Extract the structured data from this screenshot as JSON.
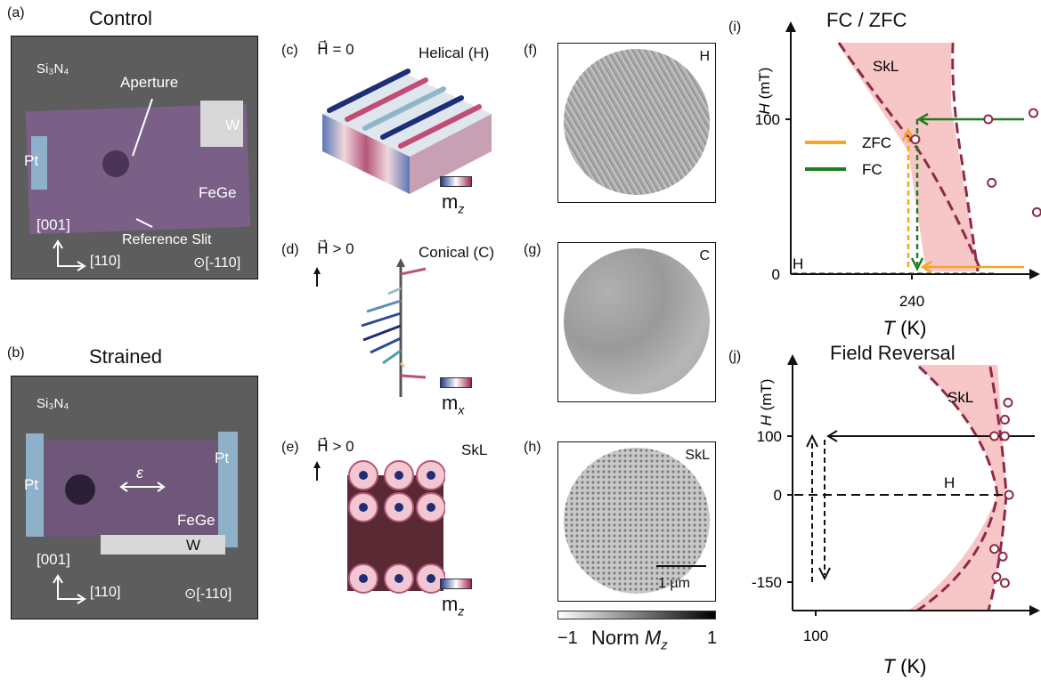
{
  "panel_a": {
    "label": "(a)",
    "title": "Control",
    "material": "Si₃N₄",
    "aperture": "Aperture",
    "w": "W",
    "pt": "Pt",
    "fege": "FeGe",
    "dir_up": "[001]",
    "ref_slit": "Reference Slit",
    "dir_right": "[110]",
    "dir_out": "⊙[-110]"
  },
  "panel_b": {
    "label": "(b)",
    "title": "Strained",
    "material": "Si₃N₄",
    "pt_left": "Pt",
    "pt_right": "Pt",
    "strain": "ε",
    "fege": "FeGe",
    "w": "W",
    "dir_up": "[001]",
    "dir_right": "[110]",
    "dir_out": "⊙[-110]"
  },
  "panel_c": {
    "label": "(c)",
    "field": "H⃗ = 0",
    "name": "Helical (H)",
    "cbar": "m",
    "cbar_sub": "z"
  },
  "panel_d": {
    "label": "(d)",
    "field": "H⃗ > 0",
    "name": "Conical (C)",
    "cbar": "m",
    "cbar_sub": "x"
  },
  "panel_e": {
    "label": "(e)",
    "field": "H⃗ > 0",
    "name": "SkL",
    "cbar": "m",
    "cbar_sub": "z"
  },
  "panel_f": {
    "label": "(f)",
    "tag": "H"
  },
  "panel_g": {
    "label": "(g)",
    "tag": "C"
  },
  "panel_h": {
    "label": "(h)",
    "tag": "SkL",
    "scale": "1 µm"
  },
  "colorbar": {
    "min": "−1",
    "max": "1",
    "label": "Norm ",
    "label_it": "M",
    "label_sub": "z"
  },
  "colors": {
    "skl_fill": "#f7c6c6",
    "boundary": "#8e2a47",
    "zfc": "#f5a623",
    "fc": "#1e7d1e"
  },
  "chart_data": [
    {
      "id": "i",
      "type": "scatter",
      "label": "(i)",
      "title": "FC / ZFC",
      "xlabel": "T (K)",
      "ylabel": "H (mT)",
      "xticks": [
        240
      ],
      "yticks": [
        0,
        100
      ],
      "region_label": "SkL",
      "phase_label": "H",
      "legend": [
        {
          "name": "ZFC",
          "color": "#f5a623"
        },
        {
          "name": "FC",
          "color": "#1e7d1e"
        }
      ],
      "points": [
        [
          262,
          100
        ],
        [
          275,
          104
        ],
        [
          241,
          87
        ],
        [
          263,
          59
        ],
        [
          276,
          40
        ],
        [
          282,
          3
        ]
      ]
    },
    {
      "id": "j",
      "type": "scatter",
      "label": "(j)",
      "title": "Field Reversal",
      "xlabel": "T (K)",
      "ylabel": "H (mT)",
      "xticks": [
        100
      ],
      "yticks": [
        -150,
        0,
        100
      ],
      "region_label": "SkL",
      "phase_label": "H",
      "points": [
        [
          283,
          157
        ],
        [
          280,
          128
        ],
        [
          270,
          100
        ],
        [
          280,
          100
        ],
        [
          284,
          0
        ],
        [
          270,
          -92
        ],
        [
          278,
          -105
        ],
        [
          272,
          -140
        ],
        [
          280,
          -150
        ]
      ]
    }
  ]
}
